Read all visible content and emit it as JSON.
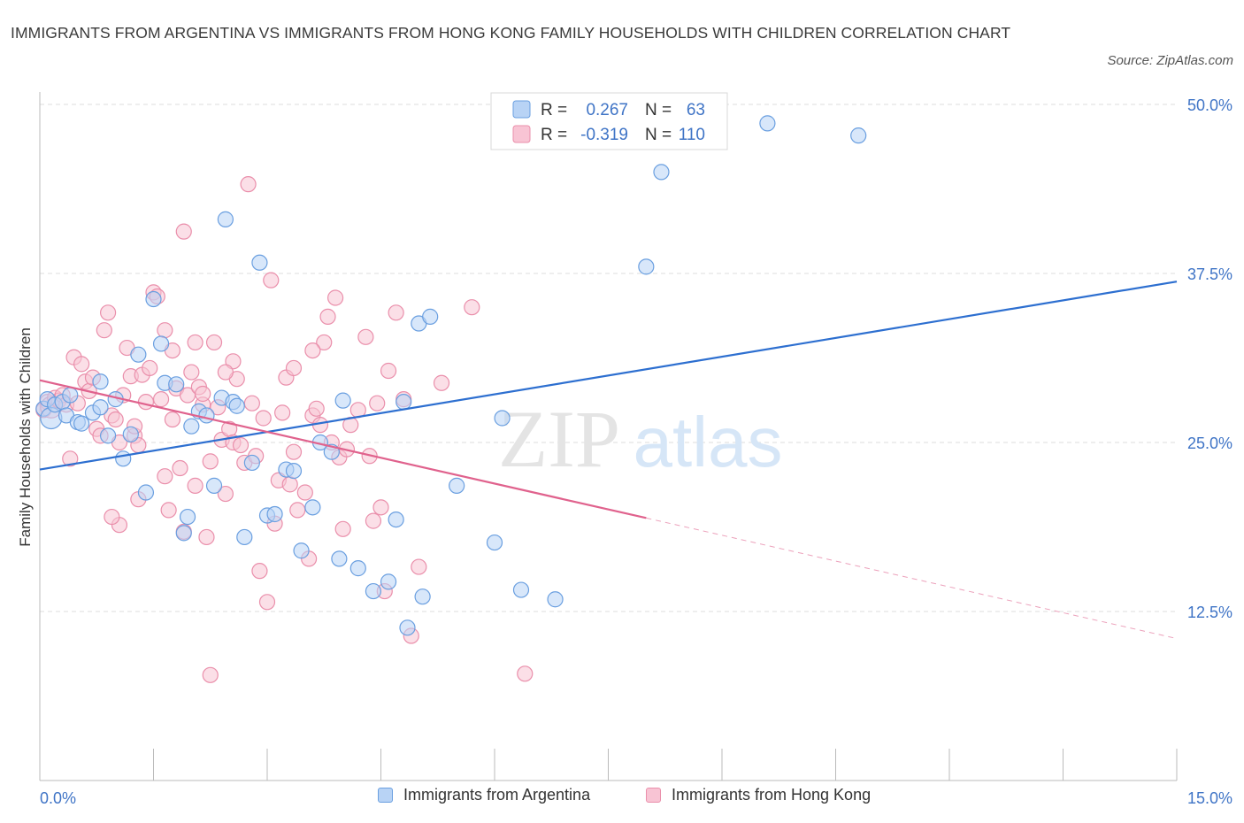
{
  "title": "IMMIGRANTS FROM ARGENTINA VS IMMIGRANTS FROM HONG KONG FAMILY HOUSEHOLDS WITH CHILDREN CORRELATION CHART",
  "source": "Source: ZipAtlas.com",
  "watermark": {
    "zip": "ZIP",
    "atlas": "atlas"
  },
  "colors": {
    "argentina_fill": "#b8d3f5",
    "argentina_stroke": "#6a9fe0",
    "argentina_line": "#2d6fd0",
    "hongkong_fill": "#f8c4d4",
    "hongkong_stroke": "#ea8fab",
    "hongkong_line": "#e0628d",
    "axis_label_blue": "#3f74c6",
    "grid": "#dddddd"
  },
  "stats_box": {
    "r_label": "R =",
    "n_label": "N =",
    "rows": [
      {
        "series": "argentina",
        "r": "0.267",
        "n": "63"
      },
      {
        "series": "hongkong",
        "r": "-0.319",
        "n": "110"
      }
    ]
  },
  "chart_data": {
    "type": "scatter",
    "ylabel": "Family Households with Children",
    "xlabel": "",
    "xlim": [
      0,
      15
    ],
    "ylim": [
      0,
      50
    ],
    "x_tick_labels": [
      {
        "value": 0,
        "label": "0.0%"
      },
      {
        "value": 15,
        "label": "15.0%"
      }
    ],
    "y_tick_labels": [
      {
        "value": 12.5,
        "label": "12.5%"
      },
      {
        "value": 25,
        "label": "25.0%"
      },
      {
        "value": 37.5,
        "label": "37.5%"
      },
      {
        "value": 50,
        "label": "50.0%"
      }
    ],
    "legend_position": "bottom-center",
    "grid": true,
    "series": [
      {
        "name": "Immigrants from Argentina",
        "key": "argentina",
        "trend": {
          "x0": 0,
          "y0": 23.0,
          "x1": 15,
          "y1": 36.9,
          "solid_until": 15
        },
        "points": [
          [
            0.05,
            27.5
          ],
          [
            0.1,
            28.2
          ],
          [
            0.15,
            26.8
          ],
          [
            0.2,
            27.8
          ],
          [
            0.3,
            28.0
          ],
          [
            0.35,
            27.0
          ],
          [
            0.4,
            28.5
          ],
          [
            0.5,
            26.5
          ],
          [
            0.55,
            26.4
          ],
          [
            0.7,
            27.2
          ],
          [
            0.8,
            29.5
          ],
          [
            0.8,
            27.6
          ],
          [
            0.9,
            25.5
          ],
          [
            1.0,
            28.2
          ],
          [
            1.1,
            23.8
          ],
          [
            1.2,
            25.6
          ],
          [
            1.3,
            31.5
          ],
          [
            1.4,
            21.3
          ],
          [
            1.5,
            35.6
          ],
          [
            1.6,
            32.3
          ],
          [
            1.65,
            29.4
          ],
          [
            1.8,
            29.3
          ],
          [
            1.9,
            18.3
          ],
          [
            1.95,
            19.5
          ],
          [
            2.0,
            26.2
          ],
          [
            2.1,
            27.3
          ],
          [
            2.2,
            27.0
          ],
          [
            2.3,
            21.8
          ],
          [
            2.4,
            28.3
          ],
          [
            2.45,
            41.5
          ],
          [
            2.55,
            28.0
          ],
          [
            2.6,
            27.7
          ],
          [
            2.7,
            18.0
          ],
          [
            2.8,
            23.5
          ],
          [
            2.9,
            38.3
          ],
          [
            3.0,
            19.6
          ],
          [
            3.1,
            19.7
          ],
          [
            3.25,
            23.0
          ],
          [
            3.35,
            22.9
          ],
          [
            3.45,
            17.0
          ],
          [
            3.6,
            20.2
          ],
          [
            3.7,
            25.0
          ],
          [
            3.85,
            24.3
          ],
          [
            3.95,
            16.4
          ],
          [
            4.0,
            28.1
          ],
          [
            4.2,
            15.7
          ],
          [
            4.4,
            14.0
          ],
          [
            4.6,
            14.7
          ],
          [
            4.7,
            19.3
          ],
          [
            4.8,
            28.0
          ],
          [
            4.85,
            11.3
          ],
          [
            5.0,
            33.8
          ],
          [
            5.05,
            13.6
          ],
          [
            5.15,
            34.3
          ],
          [
            5.5,
            21.8
          ],
          [
            6.0,
            17.6
          ],
          [
            6.1,
            26.8
          ],
          [
            6.35,
            14.1
          ],
          [
            6.8,
            13.4
          ],
          [
            8.0,
            38.0
          ],
          [
            8.2,
            45.0
          ],
          [
            9.6,
            48.6
          ],
          [
            10.8,
            47.7
          ]
        ]
      },
      {
        "name": "Immigrants from Hong Kong",
        "key": "hongkong",
        "trend": {
          "x0": 0,
          "y0": 29.6,
          "x1": 15,
          "y1": 10.5,
          "solid_until": 8.0
        },
        "points": [
          [
            0.05,
            27.4
          ],
          [
            0.1,
            28.0
          ],
          [
            0.15,
            27.6
          ],
          [
            0.2,
            28.3
          ],
          [
            0.25,
            28.1
          ],
          [
            0.3,
            28.5
          ],
          [
            0.35,
            27.8
          ],
          [
            0.4,
            23.8
          ],
          [
            0.45,
            31.3
          ],
          [
            0.5,
            27.9
          ],
          [
            0.55,
            30.8
          ],
          [
            0.6,
            29.5
          ],
          [
            0.65,
            28.8
          ],
          [
            0.7,
            29.8
          ],
          [
            0.75,
            26.0
          ],
          [
            0.8,
            25.5
          ],
          [
            0.85,
            33.3
          ],
          [
            0.9,
            34.6
          ],
          [
            0.95,
            27.0
          ],
          [
            1.0,
            26.7
          ],
          [
            1.05,
            25.0
          ],
          [
            1.1,
            28.5
          ],
          [
            1.15,
            32.0
          ],
          [
            1.2,
            29.9
          ],
          [
            1.25,
            25.5
          ],
          [
            1.3,
            24.8
          ],
          [
            1.35,
            30.0
          ],
          [
            1.4,
            28.0
          ],
          [
            1.45,
            30.5
          ],
          [
            1.5,
            36.1
          ],
          [
            1.55,
            35.8
          ],
          [
            1.6,
            28.2
          ],
          [
            1.65,
            33.3
          ],
          [
            1.7,
            20.0
          ],
          [
            1.75,
            31.8
          ],
          [
            1.8,
            29.0
          ],
          [
            1.85,
            23.1
          ],
          [
            1.9,
            18.4
          ],
          [
            1.95,
            28.5
          ],
          [
            2.0,
            30.2
          ],
          [
            2.05,
            32.4
          ],
          [
            2.1,
            29.1
          ],
          [
            2.15,
            27.8
          ],
          [
            2.2,
            18.0
          ],
          [
            2.25,
            23.6
          ],
          [
            2.3,
            32.4
          ],
          [
            2.35,
            27.6
          ],
          [
            2.4,
            25.2
          ],
          [
            2.45,
            21.2
          ],
          [
            2.5,
            26.0
          ],
          [
            2.55,
            25.0
          ],
          [
            2.6,
            29.7
          ],
          [
            2.65,
            24.8
          ],
          [
            2.7,
            23.5
          ],
          [
            2.75,
            44.1
          ],
          [
            2.8,
            27.9
          ],
          [
            2.85,
            24.0
          ],
          [
            2.9,
            15.5
          ],
          [
            2.95,
            26.8
          ],
          [
            3.0,
            13.2
          ],
          [
            3.05,
            37.0
          ],
          [
            3.1,
            19.0
          ],
          [
            3.15,
            22.2
          ],
          [
            3.2,
            27.2
          ],
          [
            3.25,
            29.8
          ],
          [
            3.3,
            21.9
          ],
          [
            3.35,
            24.3
          ],
          [
            3.4,
            20.0
          ],
          [
            3.5,
            21.3
          ],
          [
            3.55,
            16.4
          ],
          [
            3.6,
            27.0
          ],
          [
            3.65,
            27.5
          ],
          [
            3.7,
            26.3
          ],
          [
            3.75,
            32.4
          ],
          [
            3.8,
            34.3
          ],
          [
            3.85,
            25.0
          ],
          [
            3.9,
            35.7
          ],
          [
            3.95,
            23.9
          ],
          [
            4.0,
            18.6
          ],
          [
            4.05,
            24.5
          ],
          [
            4.1,
            26.3
          ],
          [
            4.2,
            27.4
          ],
          [
            4.3,
            32.8
          ],
          [
            4.35,
            24.0
          ],
          [
            4.4,
            19.2
          ],
          [
            4.5,
            20.2
          ],
          [
            4.55,
            14.0
          ],
          [
            4.6,
            30.3
          ],
          [
            4.7,
            34.6
          ],
          [
            4.8,
            28.2
          ],
          [
            4.9,
            10.7
          ],
          [
            5.0,
            15.8
          ],
          [
            5.3,
            29.4
          ],
          [
            5.7,
            35.0
          ],
          [
            6.4,
            7.9
          ],
          [
            2.25,
            7.8
          ],
          [
            1.9,
            40.6
          ],
          [
            1.05,
            18.9
          ],
          [
            0.95,
            19.5
          ],
          [
            1.3,
            20.8
          ],
          [
            1.75,
            26.7
          ],
          [
            2.15,
            28.6
          ],
          [
            2.55,
            31.0
          ],
          [
            3.6,
            31.8
          ],
          [
            4.45,
            27.9
          ],
          [
            1.25,
            26.2
          ],
          [
            1.65,
            22.5
          ],
          [
            2.05,
            21.8
          ],
          [
            2.45,
            30.2
          ],
          [
            3.35,
            30.5
          ]
        ]
      }
    ]
  },
  "legend": [
    {
      "key": "argentina",
      "label": "Immigrants from Argentina"
    },
    {
      "key": "hongkong",
      "label": "Immigrants from Hong Kong"
    }
  ]
}
